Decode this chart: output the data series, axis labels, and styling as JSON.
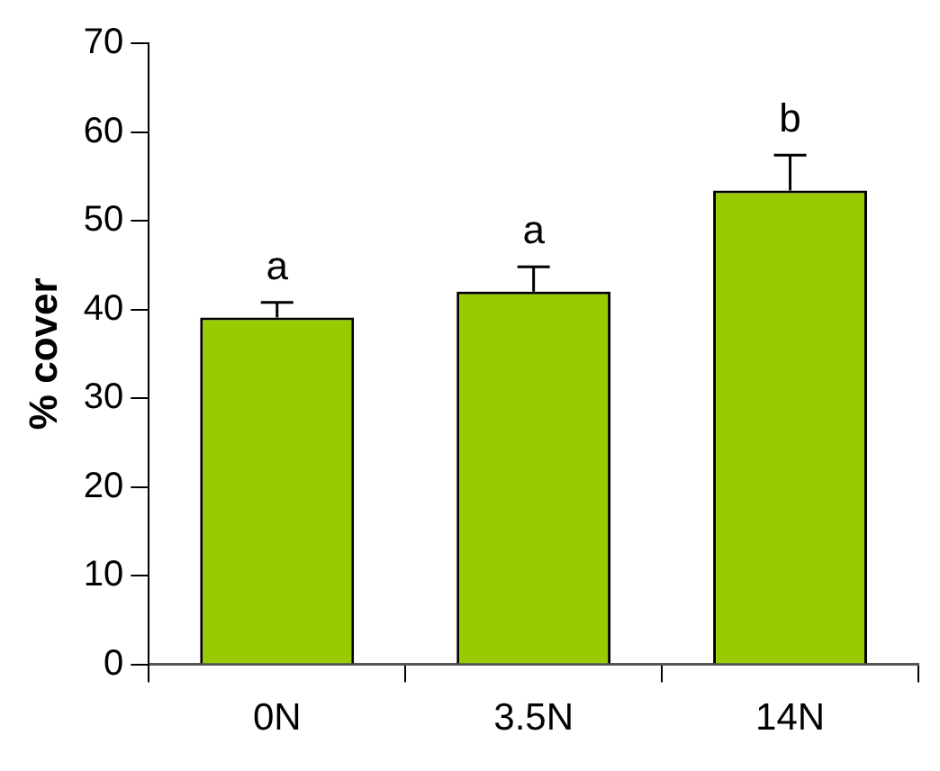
{
  "chart_data": {
    "type": "bar",
    "ylabel": "% cover",
    "categories": [
      "0N",
      "3.5N",
      "14N"
    ],
    "values": [
      39.1,
      42,
      53.4
    ],
    "errors": [
      [
        39.1,
        40.8
      ],
      [
        42,
        44.8
      ],
      [
        53.4,
        57.4
      ]
    ],
    "color": "#99cc00",
    "ylim": [
      0,
      70
    ],
    "yticks": [
      0,
      10,
      20,
      30,
      40,
      50,
      60,
      70
    ],
    "annotations": [
      "a",
      "a",
      "b"
    ]
  }
}
